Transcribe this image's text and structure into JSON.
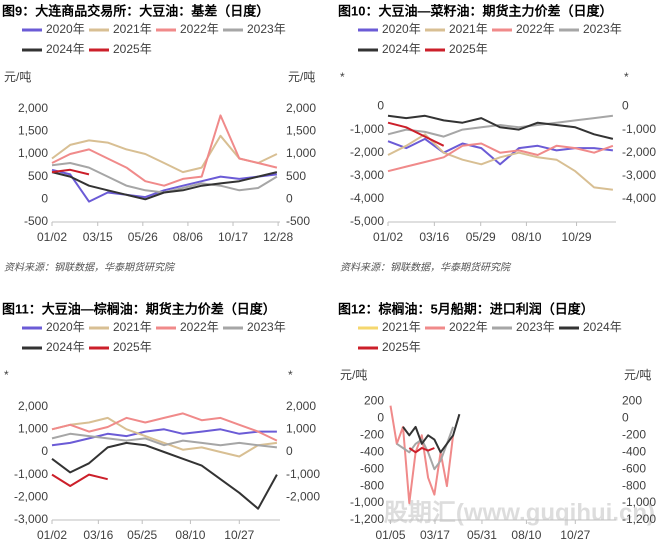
{
  "chart_data": [
    {
      "type": "line",
      "title": "图9：大连商品交易所：大豆油：基差（日度）",
      "ylabel": "元/吨",
      "y2label": "元/吨",
      "x": [
        1,
        30,
        60,
        90,
        120,
        150,
        180,
        210,
        240,
        270,
        300,
        330,
        360
      ],
      "xlim": [
        1,
        365
      ],
      "xticks": [
        {
          "value": 1,
          "label": "01/02"
        },
        {
          "value": 74,
          "label": "03/15"
        },
        {
          "value": 146,
          "label": "05/26"
        },
        {
          "value": 218,
          "label": "08/06"
        },
        {
          "value": 290,
          "label": "10/17"
        },
        {
          "value": 362,
          "label": "12/28"
        }
      ],
      "ylim": [
        -500,
        2300
      ],
      "yticks": [
        -500,
        0,
        500,
        {
          "value": 1000,
          "label": "1,000"
        },
        {
          "value": 1500,
          "label": "1,500"
        },
        {
          "value": 2000,
          "label": "2,000"
        }
      ],
      "y2lim": [
        -500,
        2300
      ],
      "y2ticks": [
        -500,
        0,
        500,
        {
          "value": 1000,
          "label": "1,000"
        },
        {
          "value": 1500,
          "label": "1,500"
        },
        {
          "value": 2000,
          "label": "2,000"
        }
      ],
      "series": [
        {
          "name": "2020年",
          "color": "#6b5bd6",
          "values": [
            650,
            550,
            -50,
            150,
            100,
            50,
            200,
            300,
            400,
            500,
            450,
            500,
            550
          ]
        },
        {
          "name": "2021年",
          "color": "#d8bf93",
          "values": [
            900,
            1200,
            1300,
            1250,
            1100,
            1000,
            800,
            600,
            700,
            1400,
            900,
            800,
            1000
          ]
        },
        {
          "name": "2022年",
          "color": "#f08a8a",
          "values": [
            800,
            1000,
            1100,
            900,
            700,
            400,
            300,
            450,
            500,
            1850,
            900,
            800,
            700
          ]
        },
        {
          "name": "2023年",
          "color": "#a6a6a6",
          "values": [
            750,
            800,
            700,
            500,
            300,
            200,
            150,
            250,
            350,
            300,
            200,
            250,
            500
          ]
        },
        {
          "name": "2024年",
          "color": "#333333",
          "values": [
            600,
            500,
            300,
            200,
            100,
            0,
            150,
            200,
            300,
            350,
            400,
            500,
            600
          ]
        },
        {
          "name": "2025年",
          "color": "#cc1f2a",
          "values": [
            600,
            650,
            550,
            null,
            null,
            null,
            null,
            null,
            null,
            null,
            null,
            null,
            null
          ]
        }
      ],
      "source": "资料来源：钢联数据，华泰期货研究院"
    },
    {
      "type": "line",
      "title": "图10：大豆油—菜籽油：期货主力价差（日度）",
      "ylabel": "*",
      "y2label": "*",
      "x": [
        1,
        30,
        60,
        90,
        120,
        150,
        180,
        210,
        240,
        270,
        300,
        330,
        360
      ],
      "xlim": [
        1,
        365
      ],
      "xticks": [
        {
          "value": 1,
          "label": "01/02"
        },
        {
          "value": 75,
          "label": "03/16"
        },
        {
          "value": 149,
          "label": "05/29"
        },
        {
          "value": 222,
          "label": "08/10"
        },
        {
          "value": 302,
          "label": "10/29"
        }
      ],
      "ylim": [
        -5000,
        500
      ],
      "yticks": [
        {
          "value": -5000,
          "label": "-5,000"
        },
        {
          "value": -4000,
          "label": "-4,000"
        },
        {
          "value": -3000,
          "label": "-3,000"
        },
        {
          "value": -2000,
          "label": "-2,000"
        },
        {
          "value": -1000,
          "label": "-1,000"
        },
        0
      ],
      "y2lim": [
        -5000,
        500
      ],
      "y2ticks": [
        {
          "value": -4000,
          "label": "-4,000"
        },
        {
          "value": -3000,
          "label": "-3,000"
        },
        {
          "value": -2000,
          "label": "-2,000"
        },
        {
          "value": -1000,
          "label": "-1,000"
        },
        0
      ],
      "series": [
        {
          "name": "2020年",
          "color": "#6b5bd6",
          "values": [
            -1500,
            -1800,
            -1400,
            -2000,
            -1600,
            -1800,
            -2500,
            -1800,
            -1700,
            -1900,
            -1800,
            -1800,
            -1900
          ]
        },
        {
          "name": "2021年",
          "color": "#d8bf93",
          "values": [
            -2100,
            -1700,
            -1200,
            -2000,
            -2300,
            -2500,
            -2200,
            -2000,
            -2200,
            -2300,
            -2800,
            -3500,
            -3600
          ]
        },
        {
          "name": "2022年",
          "color": "#f08a8a",
          "values": [
            -2800,
            -2600,
            -2400,
            -2200,
            -1700,
            -1600,
            -2000,
            -1900,
            -2100,
            -1700,
            -1800,
            -2000,
            -1700
          ]
        },
        {
          "name": "2023年",
          "color": "#a6a6a6",
          "values": [
            -1200,
            -1000,
            -1100,
            -1300,
            -1000,
            -900,
            -800,
            -900,
            -800,
            -700,
            -600,
            -500,
            -400
          ]
        },
        {
          "name": "2024年",
          "color": "#333333",
          "values": [
            -400,
            -500,
            -400,
            -600,
            -700,
            -500,
            -900,
            -1000,
            -700,
            -800,
            -900,
            -1200,
            -1400
          ]
        },
        {
          "name": "2025年",
          "color": "#cc1f2a",
          "values": [
            -700,
            -900,
            -1300,
            -1700,
            null,
            null,
            null,
            null,
            null,
            null,
            null,
            null,
            null
          ]
        }
      ],
      "source": "资料来源：钢联数据，华泰期货研究院"
    },
    {
      "type": "line",
      "title": "图11：大豆油—棕榈油：期货主力价差（日度）",
      "ylabel": "*",
      "y2label": "*",
      "x": [
        1,
        30,
        60,
        90,
        120,
        150,
        180,
        210,
        240,
        270,
        300,
        330,
        360
      ],
      "xlim": [
        1,
        365
      ],
      "xticks": [
        {
          "value": 1,
          "label": "01/02"
        },
        {
          "value": 75,
          "label": "03/16"
        },
        {
          "value": 145,
          "label": "05/25"
        },
        {
          "value": 222,
          "label": "08/10"
        },
        {
          "value": 300,
          "label": "10/27"
        }
      ],
      "ylim": [
        -3000,
        2600
      ],
      "yticks": [
        {
          "value": -3000,
          "label": "-3,000"
        },
        {
          "value": -2000,
          "label": "-2,000"
        },
        {
          "value": -1000,
          "label": "-1,000"
        },
        0,
        {
          "value": 1000,
          "label": "1,000"
        },
        {
          "value": 2000,
          "label": "2,000"
        }
      ],
      "y2lim": [
        -3000,
        2600
      ],
      "y2ticks": [
        {
          "value": -2000,
          "label": "-2,000"
        },
        {
          "value": -1000,
          "label": "-1,000"
        },
        0,
        {
          "value": 1000,
          "label": "1,000"
        },
        {
          "value": 2000,
          "label": "2,000"
        }
      ],
      "series": [
        {
          "name": "2020年",
          "color": "#6b5bd6",
          "values": [
            300,
            400,
            600,
            800,
            700,
            900,
            1000,
            800,
            900,
            1000,
            800,
            900,
            900
          ]
        },
        {
          "name": "2021年",
          "color": "#d8bf93",
          "values": [
            1000,
            1200,
            1300,
            1500,
            1000,
            700,
            400,
            100,
            200,
            0,
            -200,
            300,
            400
          ]
        },
        {
          "name": "2022年",
          "color": "#f08a8a",
          "values": [
            1000,
            1200,
            900,
            1100,
            1500,
            1300,
            1500,
            1700,
            1400,
            1500,
            1200,
            900,
            500
          ]
        },
        {
          "name": "2023年",
          "color": "#a6a6a6",
          "values": [
            600,
            800,
            700,
            600,
            500,
            600,
            300,
            500,
            400,
            300,
            400,
            300,
            200
          ]
        },
        {
          "name": "2024年",
          "color": "#333333",
          "values": [
            -300,
            -900,
            -500,
            200,
            400,
            300,
            0,
            -300,
            -600,
            -1200,
            -1800,
            -2500,
            -1000
          ]
        },
        {
          "name": "2025年",
          "color": "#cc1f2a",
          "values": [
            -1000,
            -1500,
            -1000,
            -1200,
            null,
            null,
            null,
            null,
            null,
            null,
            null,
            null,
            null
          ]
        }
      ]
    },
    {
      "type": "line",
      "title": "图12：棕榈油：5月船期：进口利润（日度）",
      "ylabel": "元/吨",
      "y2label": "元/吨",
      "x": [
        5,
        15,
        25,
        35,
        45,
        55,
        65,
        75,
        85,
        95,
        105,
        115
      ],
      "xlim": [
        1,
        365
      ],
      "xticks": [
        {
          "value": 5,
          "label": "01/05"
        },
        {
          "value": 76,
          "label": "03/17"
        },
        {
          "value": 151,
          "label": "05/31"
        },
        {
          "value": 222,
          "label": "08/10"
        },
        {
          "value": 300,
          "label": "10/27"
        }
      ],
      "ylim": [
        -1200,
        300
      ],
      "yticks": [
        {
          "value": -1200,
          "label": "-1,200"
        },
        {
          "value": -1000,
          "label": "-1,000"
        },
        -800,
        -600,
        -400,
        -200,
        0,
        200
      ],
      "y2lim": [
        -1200,
        300
      ],
      "y2ticks": [
        {
          "value": -1200,
          "label": "-1,200"
        },
        {
          "value": -1000,
          "label": "-1,000"
        },
        -800,
        -600,
        -400,
        -200,
        0,
        200
      ],
      "series": [
        {
          "name": "2021年",
          "color": "#f5d76e",
          "values": [
            null,
            null,
            null,
            null,
            null,
            null,
            null,
            null,
            null,
            null,
            null,
            null
          ]
        },
        {
          "name": "2022年",
          "color": "#f08a8a",
          "values": [
            150,
            -300,
            -100,
            -1000,
            -400,
            -200,
            -700,
            -900,
            -400,
            -800,
            -200,
            null
          ]
        },
        {
          "name": "2023年",
          "color": "#a6a6a6",
          "values": [
            null,
            -300,
            -350,
            -400,
            -300,
            -250,
            -400,
            -600,
            -500,
            -300,
            -100,
            null
          ]
        },
        {
          "name": "2024年",
          "color": "#333333",
          "values": [
            null,
            null,
            -100,
            -200,
            -100,
            -300,
            -200,
            -250,
            -400,
            -300,
            -200,
            50
          ]
        },
        {
          "name": "2025年",
          "color": "#cc1f2a",
          "values": [
            null,
            null,
            null,
            -350,
            -400,
            -350,
            -380,
            -350,
            null,
            null,
            null,
            null
          ]
        }
      ]
    }
  ],
  "watermark": "股期汇(www.guqihui.cn)"
}
